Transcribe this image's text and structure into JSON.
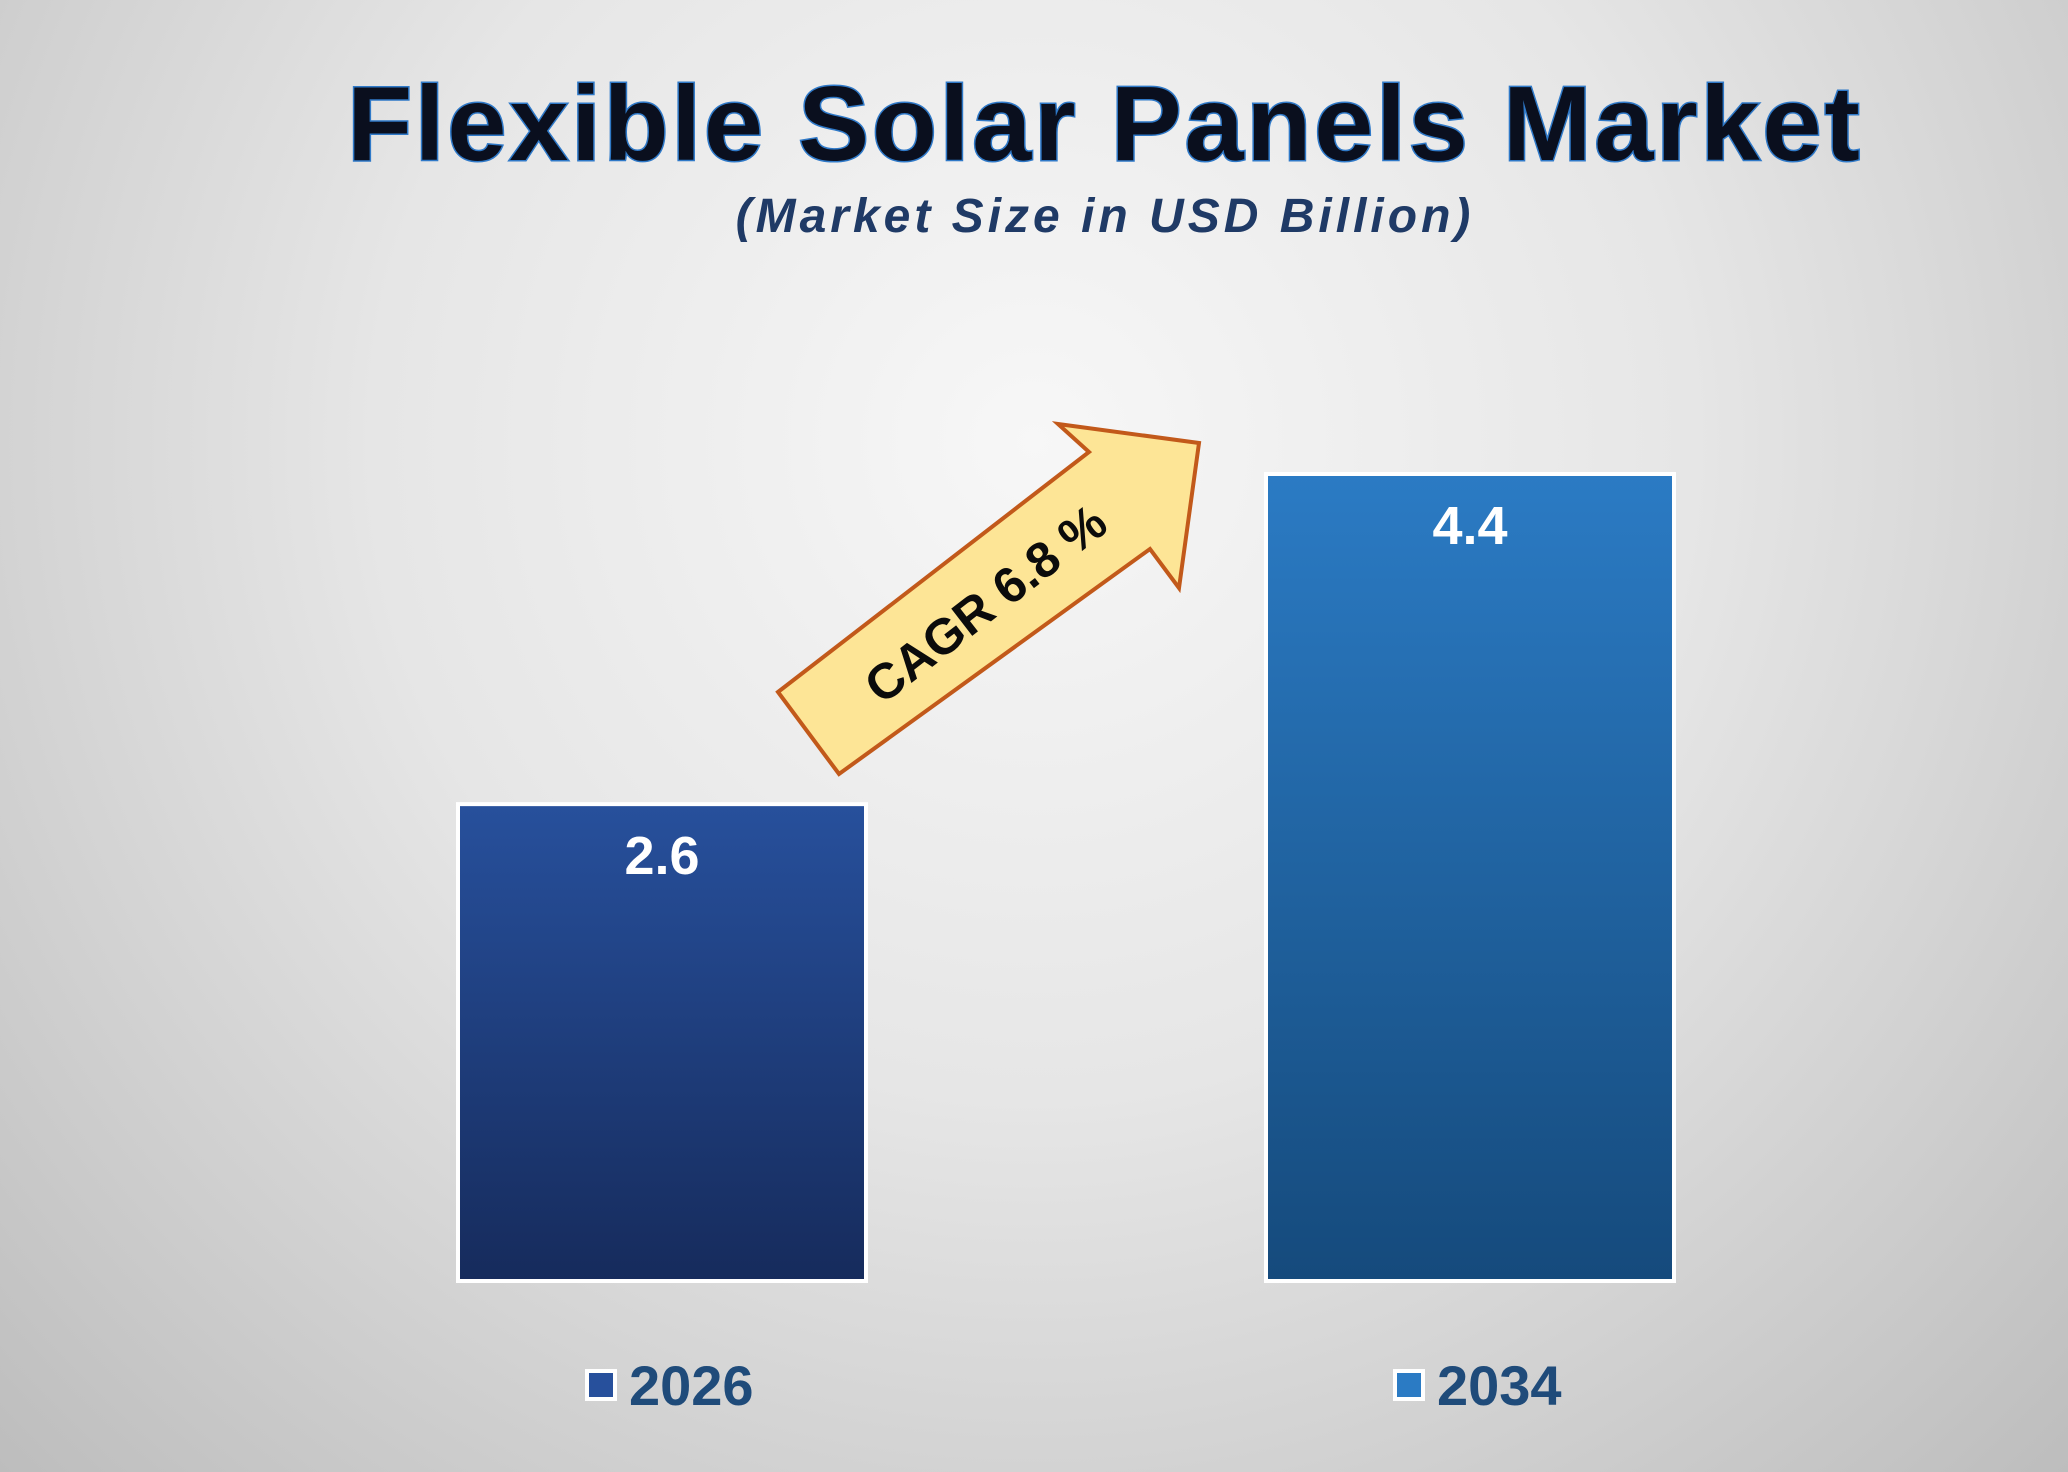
{
  "chart_data": {
    "type": "bar",
    "title": "Flexible Solar Panels Market",
    "subtitle": "(Market Size in USD Billion)",
    "categories": [
      "2026",
      "2034"
    ],
    "values": [
      2.6,
      4.4
    ],
    "value_labels": [
      "2.6",
      "4.4"
    ],
    "ylim": [
      0,
      4.4
    ],
    "grid": false,
    "legend_position": "bottom",
    "colors": {
      "bar_2026_top": "#27509c",
      "bar_2026_bottom": "#162b5c",
      "bar_2034_top": "#2b7bc4",
      "bar_2034_bottom": "#154a7c",
      "bar_border": "#ffffff",
      "arrow_fill": "#fde596",
      "arrow_stroke": "#c2591a"
    },
    "annotation": {
      "text": "CAGR 6.8 %",
      "style": "arrow"
    }
  }
}
